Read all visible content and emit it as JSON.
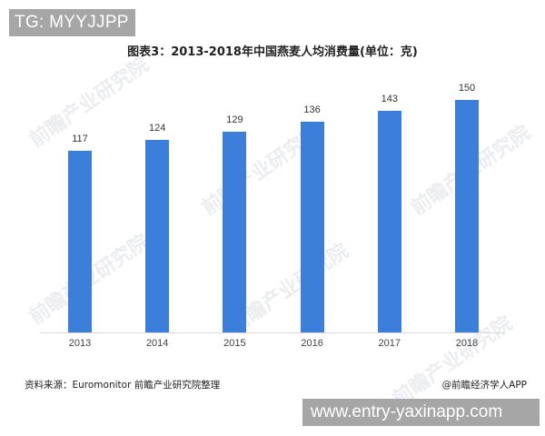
{
  "overlay": {
    "tg_label": "TG: MYYJJPP",
    "url_label": "www.entry-yaxinapp.com"
  },
  "chart": {
    "title": "图表3：2013-2018年中国燕麦人均消费量(单位：克)",
    "bar_color": "#3b7fdb",
    "source": "资料来源：Euromonitor 前瞻产业研究院整理",
    "credit": "@前瞻经济学人APP",
    "watermark": "前瞻产业研究院"
  },
  "chart_data": {
    "type": "bar",
    "title": "图表3：2013-2018年中国燕麦人均消费量(单位：克)",
    "categories": [
      "2013",
      "2014",
      "2015",
      "2016",
      "2017",
      "2018"
    ],
    "values": [
      117,
      124,
      129,
      136,
      143,
      150
    ],
    "value_labels": [
      "117",
      "124",
      "129",
      "136",
      "143",
      "150"
    ],
    "xlabel": "",
    "ylabel": "克",
    "ylim": [
      0,
      160
    ],
    "grid": false,
    "legend": null
  }
}
